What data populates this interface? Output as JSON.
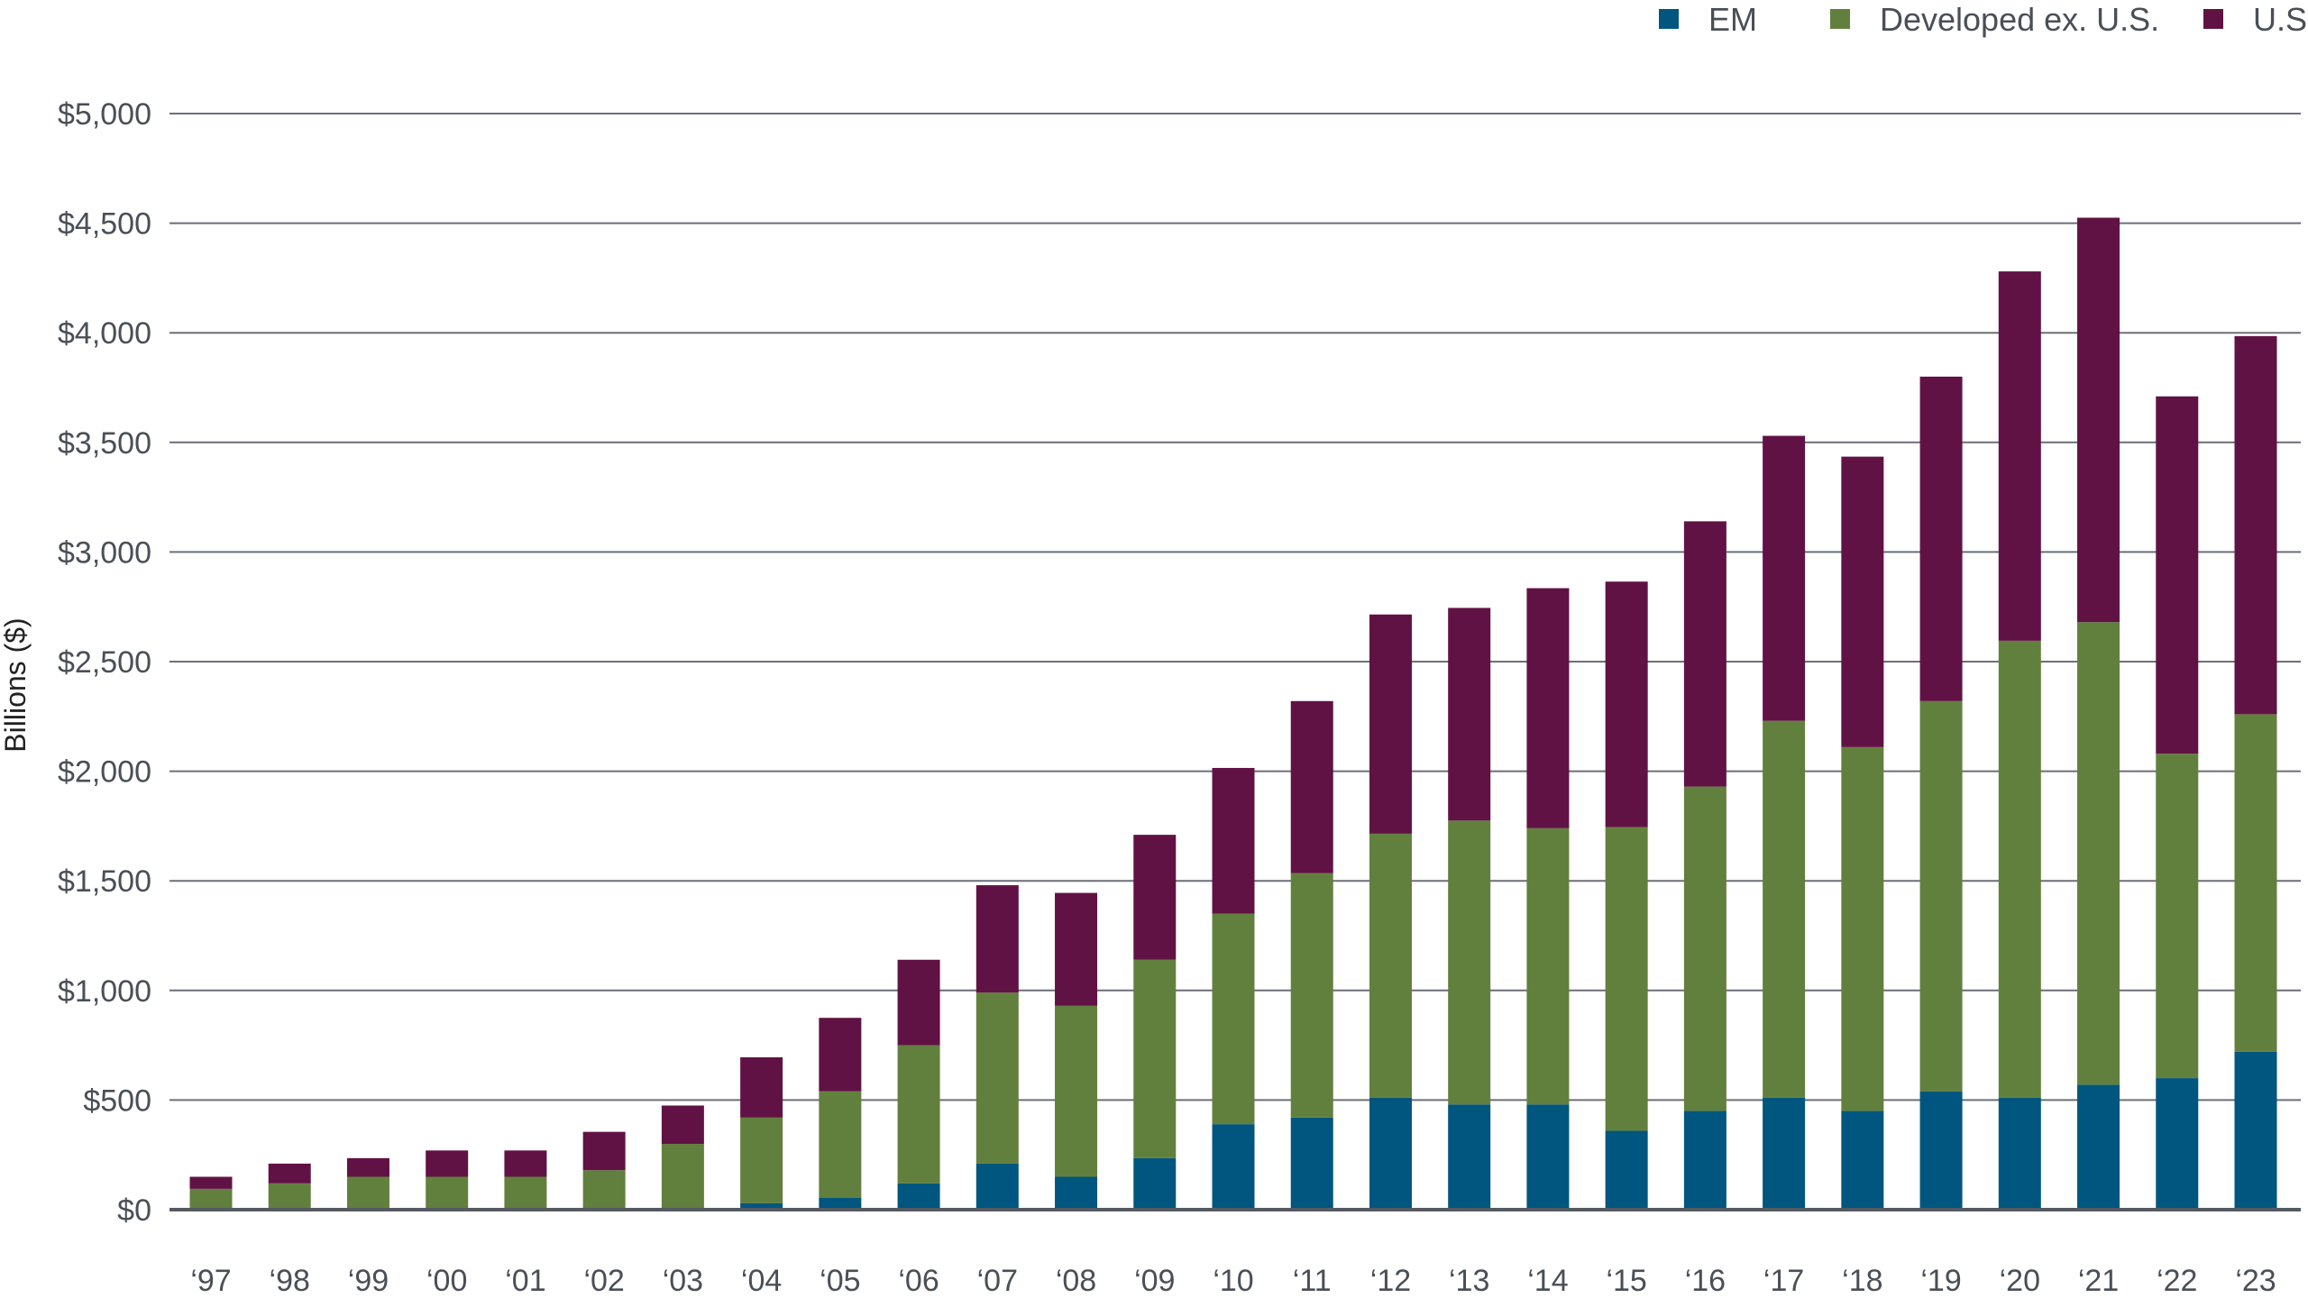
{
  "chart_data": {
    "type": "bar",
    "stacked": true,
    "title": "",
    "xlabel": "",
    "ylabel": "Billions ($)",
    "ylim": [
      0,
      5000
    ],
    "yticks": [
      0,
      500,
      1000,
      1500,
      2000,
      2500,
      3000,
      3500,
      4000,
      4500,
      5000
    ],
    "ytick_labels": [
      "$0",
      "$500",
      "$1,000",
      "$1,500",
      "$2,000",
      "$2,500",
      "$3,000",
      "$3,500",
      "$4,000",
      "$4,500",
      "$5,000"
    ],
    "grid": "horizontal",
    "legend_position": "top-right",
    "categories": [
      "‘97",
      "‘98",
      "‘99",
      "‘00",
      "‘01",
      "‘02",
      "‘03",
      "‘04",
      "‘05",
      "‘06",
      "‘07",
      "‘08",
      "‘09",
      "‘10",
      "‘11",
      "‘12",
      "‘13",
      "‘14",
      "‘15",
      "‘16",
      "‘17",
      "‘18",
      "‘19",
      "‘20",
      "‘21",
      "‘22",
      "‘23"
    ],
    "series": [
      {
        "name": "EM",
        "color": "#00567e",
        "values": [
          0,
          0,
          0,
          0,
          0,
          0,
          0,
          30,
          55,
          120,
          210,
          150,
          235,
          390,
          420,
          510,
          480,
          480,
          360,
          450,
          510,
          450,
          540,
          510,
          570,
          600,
          720
        ]
      },
      {
        "name": "Developed ex. U.S.",
        "color": "#62803d",
        "values": [
          95,
          120,
          150,
          150,
          150,
          180,
          300,
          390,
          485,
          630,
          780,
          780,
          905,
          960,
          1115,
          1205,
          1295,
          1260,
          1385,
          1480,
          1720,
          1660,
          1780,
          2085,
          2110,
          1480,
          1540
        ]
      },
      {
        "name": "U.S.",
        "color": "#611244",
        "values": [
          55,
          90,
          85,
          120,
          120,
          175,
          175,
          275,
          335,
          390,
          490,
          515,
          570,
          665,
          785,
          1000,
          970,
          1095,
          1120,
          1210,
          1300,
          1325,
          1480,
          1685,
          1845,
          1630,
          1725
        ]
      }
    ]
  }
}
